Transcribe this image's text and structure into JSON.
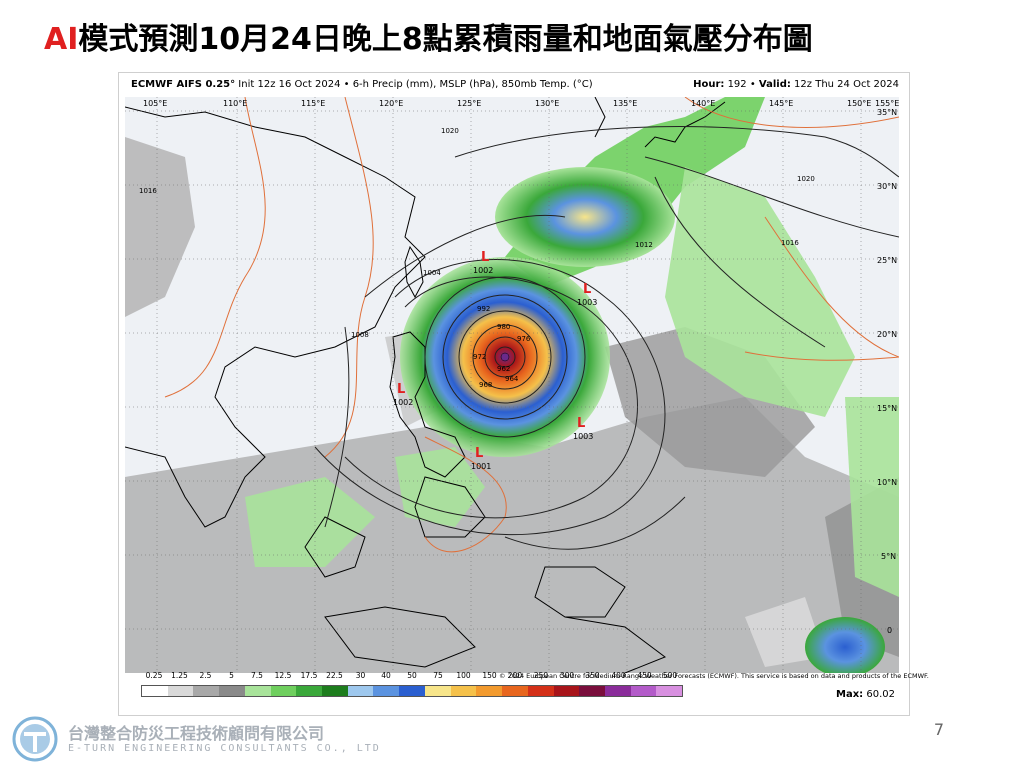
{
  "slide": {
    "title_prefix": "AI",
    "title_main": "模式預測10月24日晚上8點累積雨量和地面氣壓分布圖",
    "page_number": "7"
  },
  "map": {
    "header_left_bold": "ECMWF AIFS 0.25°",
    "header_left_rest": " Init 12z 16 Oct 2024 • 6-h Precip (mm), MSLP (hPa), 850mb Temp. (°C)",
    "header_right_bold1": "Hour:",
    "header_right_hour": " 192 • ",
    "header_right_bold2": "Valid:",
    "header_right_valid": " 12z Thu 24 Oct 2024",
    "lon_labels": [
      "105°E",
      "110°E",
      "115°E",
      "120°E",
      "125°E",
      "130°E",
      "135°E",
      "140°E",
      "145°E",
      "150°E",
      "155°E"
    ],
    "lat_labels": [
      "35°N",
      "30°N",
      "25°N",
      "20°N",
      "15°N",
      "10°N",
      "5°N",
      "0"
    ],
    "isobar_labels": [
      "1020",
      "1016",
      "1016",
      "1012",
      "1008",
      "1004",
      "992",
      "980",
      "976",
      "972",
      "968",
      "964",
      "962",
      "1020"
    ],
    "low_centers": [
      {
        "mark": "L",
        "value": "1002"
      },
      {
        "mark": "L",
        "value": "1003"
      },
      {
        "mark": "L",
        "value": "1002"
      },
      {
        "mark": "L",
        "value": "1003"
      },
      {
        "mark": "L",
        "value": "1001"
      }
    ],
    "copyright": "© 2024 European Centre for Medium-Range Weather Forecasts (ECMWF). This service is based on data and products of the ECMWF.",
    "colorbar_labels": [
      "0.25",
      "1.25",
      "2.5",
      "5",
      "7.5",
      "12.5",
      "17.5",
      "22.5",
      "30",
      "40",
      "50",
      "75",
      "100",
      "150",
      "200",
      "250",
      "300",
      "350",
      "400",
      "450",
      "500"
    ],
    "colorbar_colors": [
      "#ffffff",
      "#d9d9d9",
      "#a8a8a8",
      "#8a8a8a",
      "#a8e39a",
      "#6fcf5e",
      "#3aa83a",
      "#1d7d1d",
      "#9ec8ee",
      "#5b93e0",
      "#2b5fd0",
      "#f7e58a",
      "#f5c14a",
      "#f29a2e",
      "#e8661e",
      "#d43018",
      "#a8141a",
      "#7a0e3c",
      "#8a2c9a",
      "#b35bc9",
      "#d890e0"
    ],
    "max_label": "Max:",
    "max_value": " 60.02"
  },
  "company": {
    "name_zh": "台灣整合防災工程技術顧問有限公司",
    "name_en": "E-TURN ENGINEERING CONSULTANTS CO., LTD"
  }
}
